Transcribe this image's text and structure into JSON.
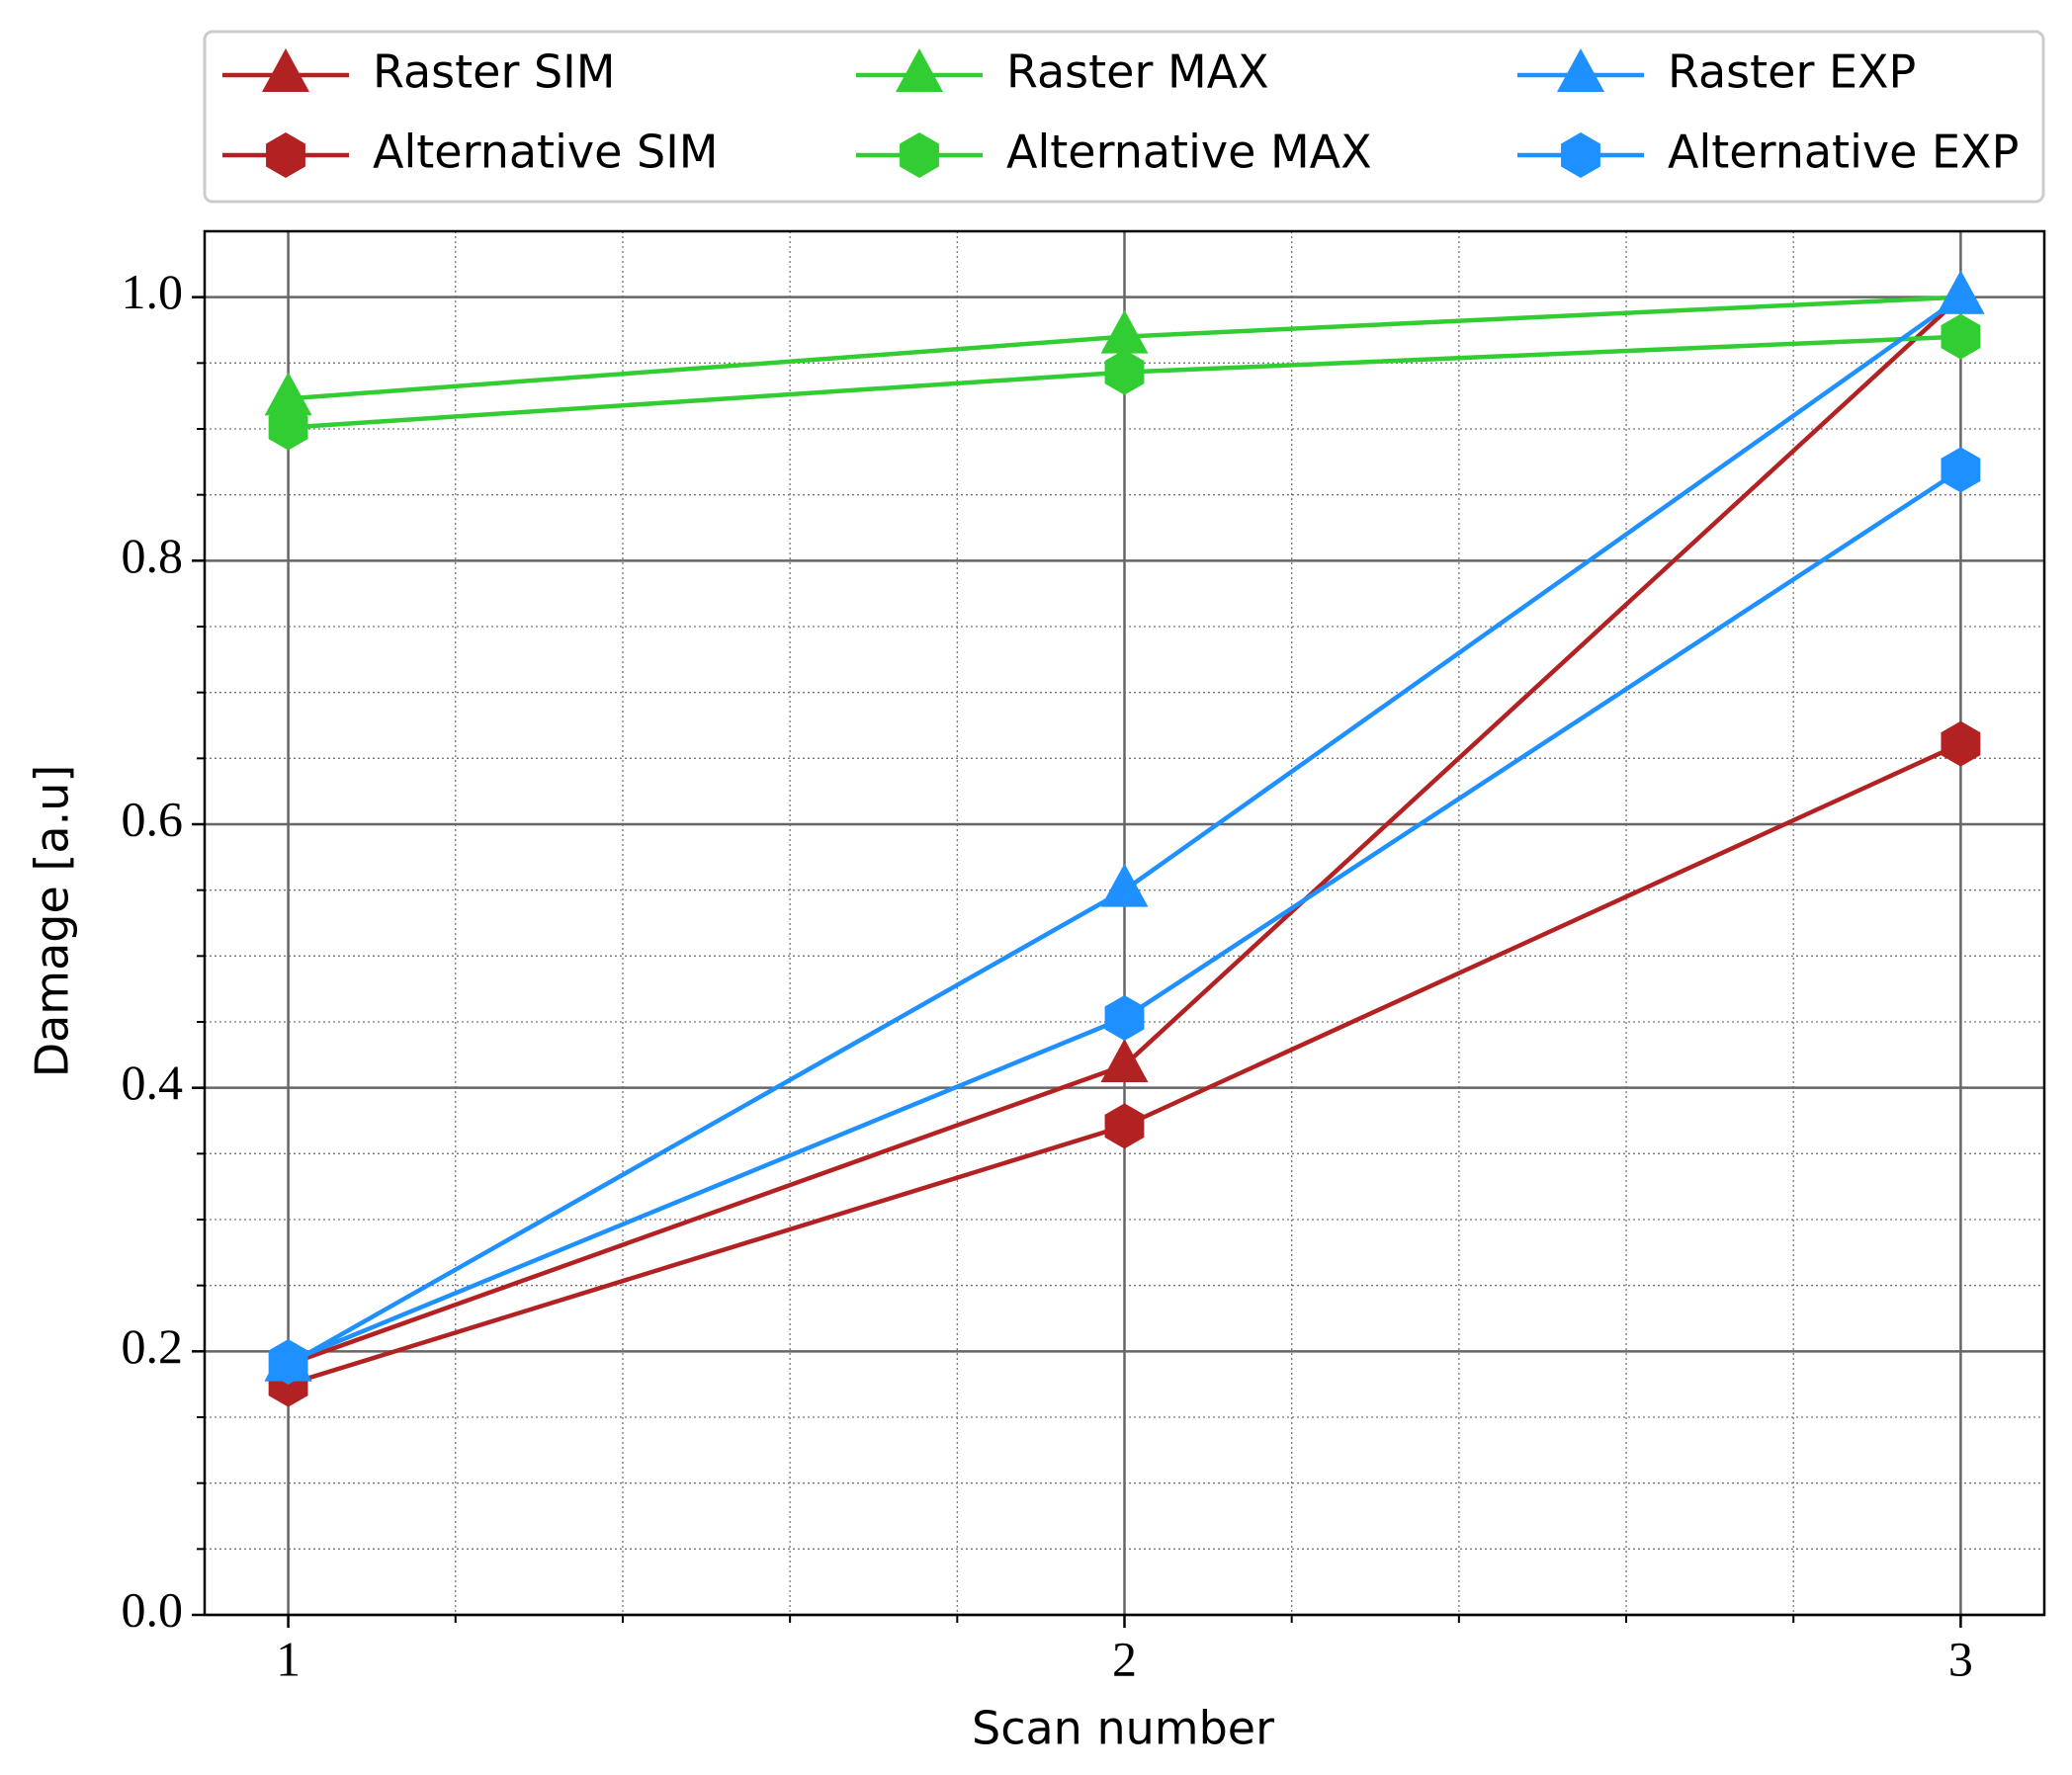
{
  "chart_data": {
    "type": "line",
    "xlabel": "Scan number",
    "ylabel": "Damage [a.u]",
    "x": [
      1,
      2,
      3
    ],
    "xlim": [
      0.9,
      3.1
    ],
    "xticks": [
      1,
      2,
      3
    ],
    "ylim": [
      0,
      1.05
    ],
    "yticks": [
      {
        "value": 0,
        "label": "0.0"
      },
      0.2,
      0.4,
      0.6,
      0.8,
      {
        "value": 1,
        "label": "1.0"
      }
    ],
    "grid": true,
    "minor_grid": true,
    "minor_divisions": {
      "x": 5,
      "y": 4
    },
    "legend": "top",
    "series": [
      {
        "name": "Raster SIM",
        "color": "#b22222",
        "marker": "triangle",
        "values": [
          0.19,
          0.417,
          1.0
        ]
      },
      {
        "name": "Alternative SIM",
        "color": "#b22222",
        "marker": "hexagon",
        "values": [
          0.175,
          0.371,
          0.661
        ]
      },
      {
        "name": "Raster MAX",
        "color": "#32cd32",
        "marker": "triangle",
        "values": [
          0.923,
          0.97,
          1.0
        ]
      },
      {
        "name": "Alternative MAX",
        "color": "#32cd32",
        "marker": "hexagon",
        "values": [
          0.901,
          0.943,
          0.97
        ]
      },
      {
        "name": "Raster EXP",
        "color": "#1e90ff",
        "marker": "triangle",
        "values": [
          0.19,
          0.55,
          1.0
        ]
      },
      {
        "name": "Alternative EXP",
        "color": "#1e90ff",
        "marker": "hexagon",
        "values": [
          0.192,
          0.453,
          0.869
        ]
      }
    ]
  }
}
